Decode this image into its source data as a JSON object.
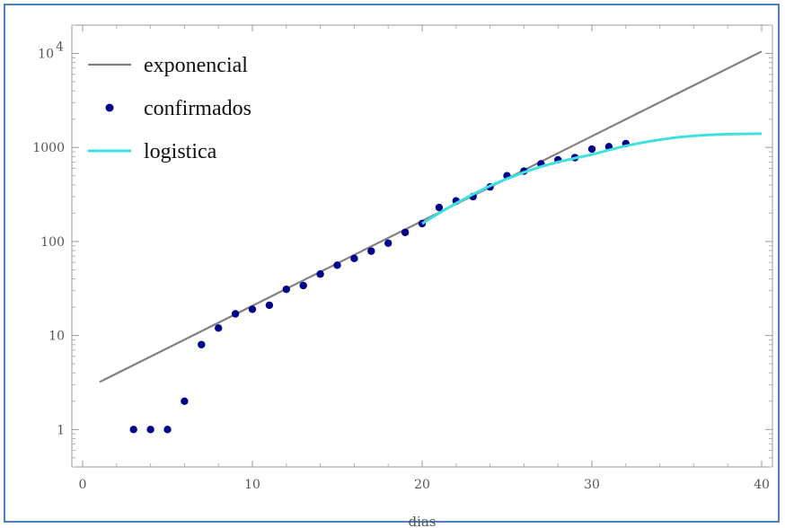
{
  "chart_data": {
    "type": "scatter",
    "xlabel": "dias",
    "ylabel": "",
    "xlim": [
      0,
      40
    ],
    "ylim": [
      0.4,
      20000
    ],
    "y_scale": "log",
    "x_ticks": [
      0,
      10,
      20,
      30,
      40
    ],
    "y_ticks": [
      {
        "value": 1,
        "label": "1"
      },
      {
        "value": 10,
        "label": "10"
      },
      {
        "value": 100,
        "label": "100"
      },
      {
        "value": 1000,
        "label": "1000"
      },
      {
        "value": 10000,
        "label": "10",
        "exp": "4"
      }
    ],
    "grid": false,
    "legend_position": "top-left",
    "series": [
      {
        "name": "exponencial",
        "kind": "line",
        "color": "#808080",
        "x": [
          1,
          40
        ],
        "y": [
          3.2,
          10500
        ]
      },
      {
        "name": "confirmados",
        "kind": "points",
        "color": "#00008b",
        "x": [
          3,
          4,
          5,
          6,
          7,
          8,
          9,
          10,
          11,
          12,
          13,
          14,
          15,
          16,
          17,
          18,
          19,
          20,
          21,
          22,
          23,
          24,
          25,
          26,
          27,
          28,
          29,
          30,
          31,
          32
        ],
        "y": [
          1,
          1,
          1,
          2,
          8,
          12,
          17,
          19,
          21,
          31,
          34,
          45,
          56,
          66,
          79,
          96,
          125,
          155,
          230,
          270,
          300,
          380,
          500,
          560,
          670,
          740,
          780,
          960,
          1020,
          1100
        ]
      },
      {
        "name": "logistica",
        "kind": "line",
        "color": "#40e0e0",
        "x": [
          20,
          21,
          22,
          23,
          24,
          25,
          26,
          27,
          28,
          29,
          30,
          31,
          32,
          33,
          34,
          35,
          36,
          37,
          38,
          39,
          40
        ],
        "y": [
          155,
          200,
          255,
          318,
          390,
          465,
          545,
          625,
          700,
          770,
          840,
          940,
          1040,
          1130,
          1210,
          1280,
          1330,
          1365,
          1385,
          1395,
          1400
        ]
      }
    ]
  }
}
